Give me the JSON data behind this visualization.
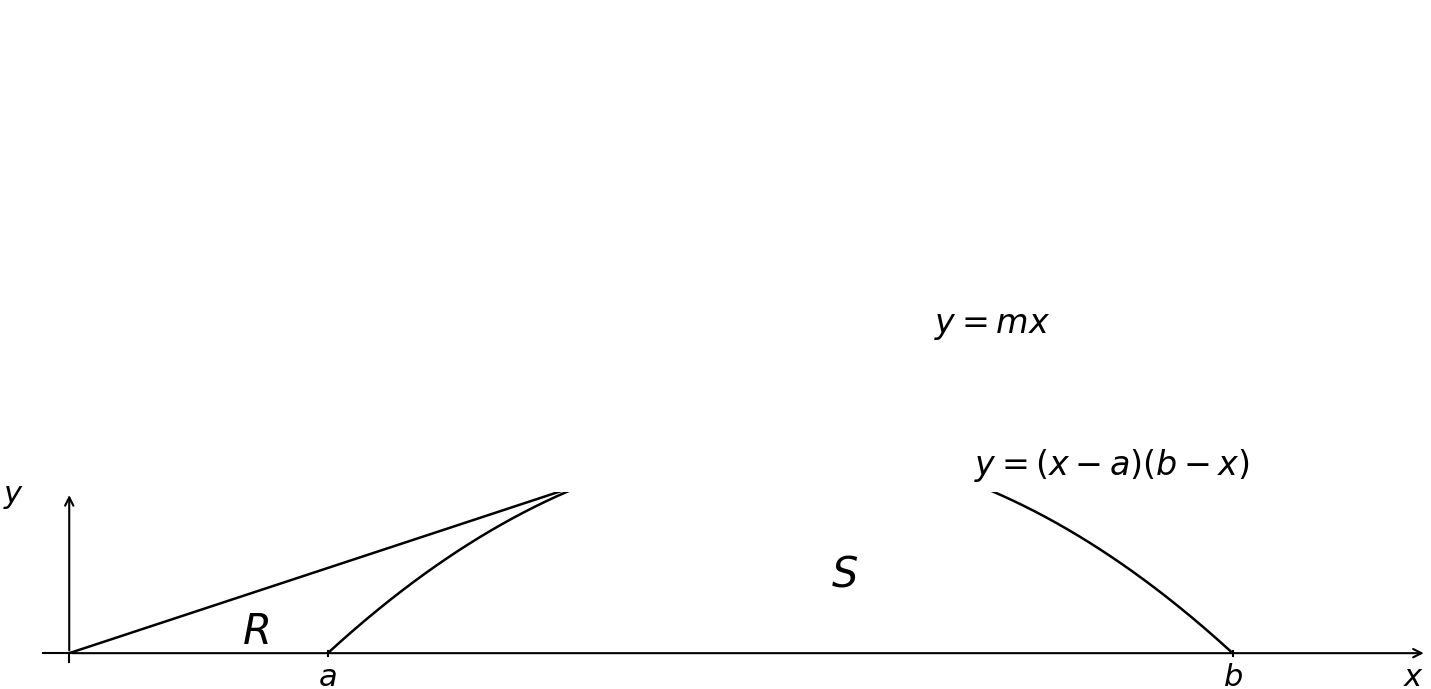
{
  "a": 2.0,
  "b": 9.0,
  "x_min": -0.3,
  "x_max": 10.5,
  "y_min": -0.8,
  "y_max": 9.5,
  "background_color": "#ffffff",
  "line_color": "#000000",
  "curve_color": "#000000",
  "figsize": [
    14.31,
    6.89
  ],
  "dpi": 100,
  "line_label": "$y = mx$",
  "parabola_label": "$y = (x-a)(b-x)$",
  "region_S_label": "$S$",
  "region_R_label": "$R$",
  "axis_x_label": "$x$",
  "axis_y_label": "$y$",
  "axis_a_label": "$a$",
  "axis_b_label": "$b$"
}
